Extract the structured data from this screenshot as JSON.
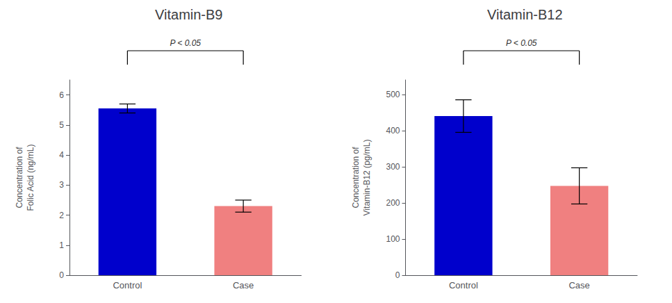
{
  "chart_data": [
    {
      "type": "bar",
      "title": "Vitamin-B9",
      "categories": [
        "Control",
        "Case"
      ],
      "values": [
        5.55,
        2.3
      ],
      "errors": [
        0.15,
        0.2
      ],
      "colors": [
        "#0000CC",
        "#F08080"
      ],
      "ylabel": "Concentration of\nFolic Acid (ng/mL)",
      "ylim": [
        0,
        6.5
      ],
      "yticks": [
        0,
        1,
        2,
        3,
        4,
        5,
        6
      ],
      "annotations": [
        "P < 0.05"
      ],
      "grid": false
    },
    {
      "type": "bar",
      "title": "Vitamin-B12",
      "categories": [
        "Control",
        "Case"
      ],
      "values": [
        440,
        247
      ],
      "errors": [
        45,
        50
      ],
      "colors": [
        "#0000CC",
        "#F08080"
      ],
      "ylabel": "Concentration of\nVitamin-B12 (pg/mL)",
      "ylim": [
        0,
        540
      ],
      "yticks": [
        0,
        100,
        200,
        300,
        400,
        500
      ],
      "annotations": [
        "P < 0.05"
      ],
      "grid": false
    }
  ]
}
